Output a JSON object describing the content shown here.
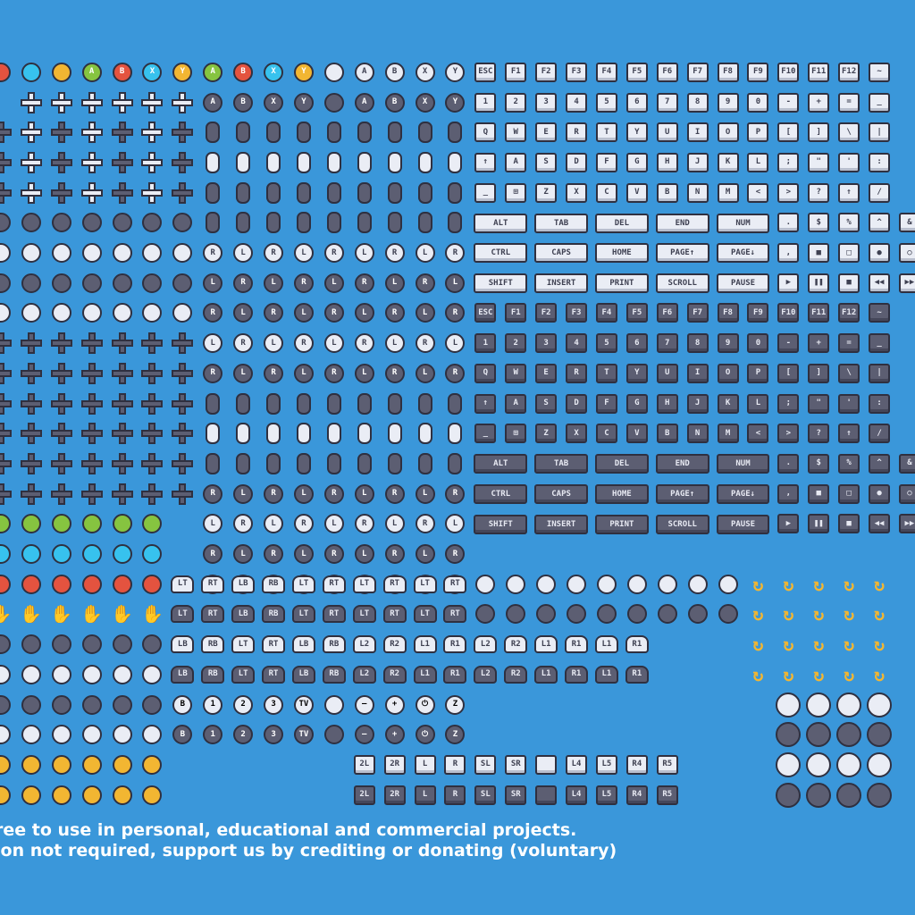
{
  "credit": {
    "line1": "ree to use in personal, educational and commercial projects.",
    "line2": "ion not required, support us by crediting or donating (voluntary)"
  },
  "palette": {
    "background": "#3a97da",
    "outline": "#2f3040",
    "key_dark": "#5c5e72",
    "key_light": "#eaedf5",
    "accent_red": "#e4533f",
    "accent_cyan": "#37c2ee",
    "accent_yellow": "#f2b632",
    "accent_green": "#86c440"
  },
  "buttons_top": [
    {
      "label": "",
      "color": "#e4533f"
    },
    {
      "label": "",
      "color": "#37c2ee"
    },
    {
      "label": "",
      "color": "#f2b632"
    },
    {
      "label": "A",
      "color": "#86c440"
    },
    {
      "label": "B",
      "color": "#e4533f"
    },
    {
      "label": "X",
      "color": "#37c2ee"
    },
    {
      "label": "Y",
      "color": "#f2b632"
    },
    {
      "label": "A",
      "color": "#86c440"
    },
    {
      "label": "B",
      "color": "#e4533f"
    },
    {
      "label": "X",
      "color": "#37c2ee"
    },
    {
      "label": "Y",
      "color": "#f2b632"
    },
    {
      "label": "",
      "color": "#eaedf5"
    },
    {
      "label": "A",
      "color": "#eaedf5"
    },
    {
      "label": "B",
      "color": "#eaedf5"
    },
    {
      "label": "X",
      "color": "#eaedf5"
    },
    {
      "label": "Y",
      "color": "#eaedf5"
    }
  ],
  "buttons_second": [
    {
      "label": "A",
      "color": "#5c5e72"
    },
    {
      "label": "B",
      "color": "#5c5e72"
    },
    {
      "label": "X",
      "color": "#5c5e72"
    },
    {
      "label": "Y",
      "color": "#5c5e72"
    },
    {
      "label": "",
      "color": "#5c5e72"
    },
    {
      "label": "A",
      "color": "#5c5e72"
    },
    {
      "label": "B",
      "color": "#5c5e72"
    },
    {
      "label": "X",
      "color": "#5c5e72"
    },
    {
      "label": "Y",
      "color": "#5c5e72"
    }
  ],
  "keyboard_light": {
    "fkeys": [
      "ESC",
      "F1",
      "F2",
      "F3",
      "F4",
      "F5",
      "F6",
      "F7",
      "F8",
      "F9",
      "F10",
      "F11",
      "F12",
      "~"
    ],
    "numbers": [
      "1",
      "2",
      "3",
      "4",
      "5",
      "6",
      "7",
      "8",
      "9",
      "0",
      "-",
      "+",
      "=",
      "_"
    ],
    "qwerty": [
      "Q",
      "W",
      "E",
      "R",
      "T",
      "Y",
      "U",
      "I",
      "O",
      "P",
      "[",
      "]",
      "\\",
      "|"
    ],
    "asdf": [
      "↑",
      "A",
      "S",
      "D",
      "F",
      "G",
      "H",
      "J",
      "K",
      "L",
      ";",
      "\"",
      "'",
      ":"
    ],
    "zxcv": [
      "_",
      "⊞",
      "Z",
      "X",
      "C",
      "V",
      "B",
      "N",
      "M",
      "<",
      ">",
      "?",
      "↑",
      "/"
    ],
    "specials_row1": [
      "ALT",
      "TAB",
      "DEL",
      "END",
      "NUM"
    ],
    "specials_row1_right": [
      ".",
      "$",
      "%",
      "^",
      "&"
    ],
    "specials_row2": [
      "CTRL",
      "CAPS",
      "HOME",
      "PAGE↑",
      "PAGE↓"
    ],
    "specials_row2_right": [
      ",",
      "■",
      "□",
      "●",
      "○"
    ],
    "specials_row3": [
      "SHIFT",
      "INSERT",
      "PRINT",
      "SCROLL",
      "PAUSE"
    ],
    "specials_row3_right": [
      "▶",
      "❚❚",
      "■",
      "◀◀",
      "▶▶"
    ]
  },
  "keyboard_dark": {
    "fkeys": [
      "ESC",
      "F1",
      "F2",
      "F3",
      "F4",
      "F5",
      "F6",
      "F7",
      "F8",
      "F9",
      "F10",
      "F11",
      "F12",
      "~"
    ],
    "numbers": [
      "1",
      "2",
      "3",
      "4",
      "5",
      "6",
      "7",
      "8",
      "9",
      "0",
      "-",
      "+",
      "=",
      "_"
    ],
    "qwerty": [
      "Q",
      "W",
      "E",
      "R",
      "T",
      "Y",
      "U",
      "I",
      "O",
      "P",
      "[",
      "]",
      "\\",
      "|"
    ],
    "asdf": [
      "↑",
      "A",
      "S",
      "D",
      "F",
      "G",
      "H",
      "J",
      "K",
      "L",
      ";",
      "\"",
      "'",
      ":"
    ],
    "zxcv": [
      "_",
      "⊞",
      "Z",
      "X",
      "C",
      "V",
      "B",
      "N",
      "M",
      "<",
      ">",
      "?",
      "↑",
      "/"
    ],
    "specials_row1": [
      "ALT",
      "TAB",
      "DEL",
      "END",
      "NUM"
    ],
    "specials_row1_right": [
      ".",
      "$",
      "%",
      "^",
      "&"
    ],
    "specials_row2": [
      "CTRL",
      "CAPS",
      "HOME",
      "PAGE↑",
      "PAGE↓"
    ],
    "specials_row2_right": [
      ",",
      "■",
      "□",
      "●",
      "○"
    ],
    "specials_row3": [
      "SHIFT",
      "INSERT",
      "PRINT",
      "SCROLL",
      "PAUSE"
    ],
    "specials_row3_right": [
      "▶",
      "❚❚",
      "■",
      "◀◀",
      "▶▶"
    ]
  },
  "stick_labels": [
    "L",
    "R",
    "L",
    "R",
    "L",
    "R"
  ],
  "shoulders_row1": [
    "LT",
    "RT",
    "LB",
    "RB",
    "LT",
    "RT",
    "LT",
    "RT",
    "LT",
    "RT"
  ],
  "shoulders_row2": [
    "LT",
    "RT",
    "LB",
    "RB",
    "LT",
    "RT",
    "LT",
    "RT",
    "LT",
    "RT"
  ],
  "shoulders_row3": [
    "LB",
    "RB",
    "LT",
    "RT",
    "LB",
    "RB",
    "L2",
    "R2",
    "L1",
    "R1",
    "L2",
    "R2",
    "L1",
    "R1",
    "L1",
    "R1"
  ],
  "shoulders_row4": [
    "LB",
    "RB",
    "LT",
    "RT",
    "LB",
    "RB",
    "L2",
    "R2",
    "L1",
    "R1",
    "L2",
    "R2",
    "L1",
    "R1",
    "L1",
    "R1"
  ],
  "misc_row1": [
    "B",
    "1",
    "2",
    "3",
    "TV",
    "",
    "—",
    "+",
    "⏻",
    "Z"
  ],
  "misc_row2": [
    "B",
    "1",
    "2",
    "3",
    "TV",
    "",
    "—",
    "+",
    "⏻",
    "Z"
  ],
  "small_row1": [
    "2L",
    "2R",
    "L",
    "R",
    "SL",
    "SR",
    "",
    "L4",
    "L5",
    "R4",
    "R5"
  ],
  "small_row2": [
    "2L",
    "2R",
    "L",
    "R",
    "SL",
    "SR",
    "",
    "L4",
    "L5",
    "R4",
    "R5"
  ]
}
